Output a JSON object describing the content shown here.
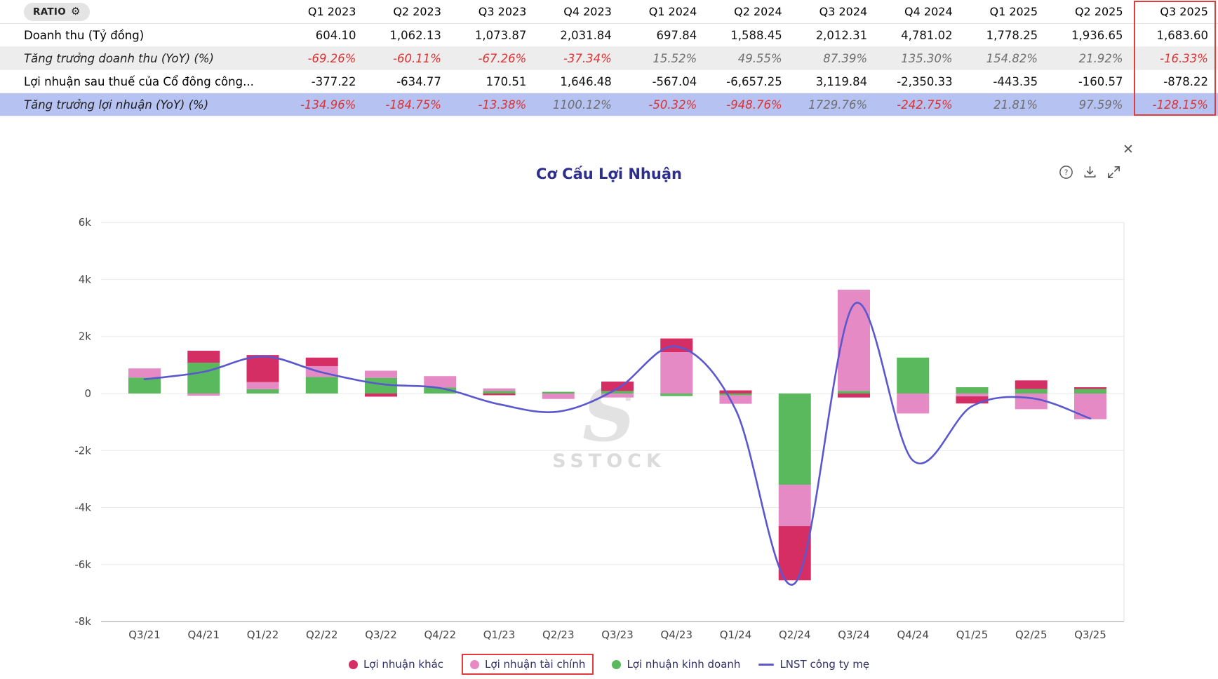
{
  "table": {
    "ratio_button": "RATIO",
    "gear_icon": "⚙",
    "columns": [
      "Q1 2023",
      "Q2 2023",
      "Q3 2023",
      "Q4 2023",
      "Q1 2024",
      "Q2 2024",
      "Q3 2024",
      "Q4 2024",
      "Q1 2025",
      "Q2 2025",
      "Q3 2025"
    ],
    "highlighted_column": "Q3 2025",
    "rows": [
      {
        "label": "Doanh thu (Tỷ đồng)",
        "type": "value",
        "bg": "white",
        "values": [
          "604.10",
          "1,062.13",
          "1,073.87",
          "2,031.84",
          "697.84",
          "1,588.45",
          "2,012.31",
          "4,781.02",
          "1,778.25",
          "1,936.65",
          "1,683.60"
        ]
      },
      {
        "label": "Tăng trưởng doanh thu (YoY) (%)",
        "type": "growth",
        "bg": "gray",
        "values": [
          "-69.26%",
          "-60.11%",
          "-67.26%",
          "-37.34%",
          "15.52%",
          "49.55%",
          "87.39%",
          "135.30%",
          "154.82%",
          "21.92%",
          "-16.33%"
        ]
      },
      {
        "label": "Lợi nhuận sau thuế của Cổ đông công...",
        "type": "value",
        "bg": "white",
        "values": [
          "-377.22",
          "-634.77",
          "170.51",
          "1,646.48",
          "-567.04",
          "-6,657.25",
          "3,119.84",
          "-2,350.33",
          "-443.35",
          "-160.57",
          "-878.22"
        ]
      },
      {
        "label": "Tăng trưởng lợi nhuận (YoY) (%)",
        "type": "growth",
        "bg": "blue",
        "values": [
          "-134.96%",
          "-184.75%",
          "-13.38%",
          "1100.12%",
          "-50.32%",
          "-948.76%",
          "1729.76%",
          "-242.75%",
          "21.81%",
          "97.59%",
          "-128.15%"
        ]
      }
    ]
  },
  "chart": {
    "title": "Cơ Cấu Lợi Nhuận",
    "close_icon": "✕",
    "help_glyph": "?",
    "watermark": "SSTOCK",
    "watermark_glyph": "S",
    "toolbar_icons": [
      "help-icon",
      "download-icon",
      "expand-icon"
    ]
  },
  "chart_data": {
    "type": "bar",
    "subtype": "stacked-bar-with-line",
    "title": "Cơ Cấu Lợi Nhuận",
    "unit": "Tỷ đồng",
    "grid": true,
    "legend_position": "bottom",
    "ylim": [
      -8000,
      6000
    ],
    "y_axis": [
      {
        "value": 6000,
        "label": "6k"
      },
      {
        "value": 4000,
        "label": "4k"
      },
      {
        "value": 2000,
        "label": "2k"
      },
      {
        "value": 0,
        "label": "0"
      },
      {
        "value": -2000,
        "label": "-2k"
      },
      {
        "value": -4000,
        "label": "-4k"
      },
      {
        "value": -6000,
        "label": "-6k"
      },
      {
        "value": -8000,
        "label": "-8k"
      }
    ],
    "categories": [
      "Q3/21",
      "Q4/21",
      "Q1/22",
      "Q2/22",
      "Q3/22",
      "Q4/22",
      "Q1/23",
      "Q2/23",
      "Q3/23",
      "Q4/23",
      "Q1/24",
      "Q2/24",
      "Q3/24",
      "Q4/24",
      "Q1/25",
      "Q2/25",
      "Q3/25"
    ],
    "bar_series": [
      {
        "name": "Lợi nhuận khác",
        "color": "#d52e64",
        "legend_highlighted": false,
        "values": [
          0,
          420,
          950,
          300,
          -110,
          0,
          -60,
          0,
          330,
          480,
          110,
          -1900,
          -140,
          0,
          -250,
          300,
          60
        ]
      },
      {
        "name": "Lợi nhuận tài chính",
        "color": "#e58ac5",
        "legend_highlighted": true,
        "values": [
          320,
          -80,
          250,
          380,
          250,
          400,
          90,
          -190,
          -140,
          1450,
          -300,
          -1450,
          3550,
          -700,
          -100,
          -550,
          -900
        ]
      },
      {
        "name": "Lợi nhuận kinh doanh",
        "color": "#59b95c",
        "legend_highlighted": false,
        "values": [
          560,
          1080,
          150,
          580,
          550,
          210,
          90,
          60,
          90,
          -90,
          -60,
          -3200,
          90,
          1260,
          220,
          160,
          160
        ]
      }
    ],
    "stack_order": [
      "Lợi nhuận kinh doanh",
      "Lợi nhuận tài chính",
      "Lợi nhuận khác"
    ],
    "line_series": {
      "name": "LNST công ty mẹ",
      "color": "#5a57cf",
      "values": [
        500,
        760,
        1300,
        740,
        330,
        190,
        -377.22,
        -634.77,
        170.51,
        1646.48,
        -567.04,
        -6657.25,
        3119.84,
        -2350.33,
        -443.35,
        -160.57,
        -878.22
      ]
    }
  },
  "colors": {
    "negative_text": "#e03131",
    "muted_text": "#6e6e6e",
    "highlight_border": "#e23b3b",
    "selected_row_bg": "#b6c2f1",
    "alt_row_bg": "#ededed",
    "title_text": "#2e2e8f"
  }
}
